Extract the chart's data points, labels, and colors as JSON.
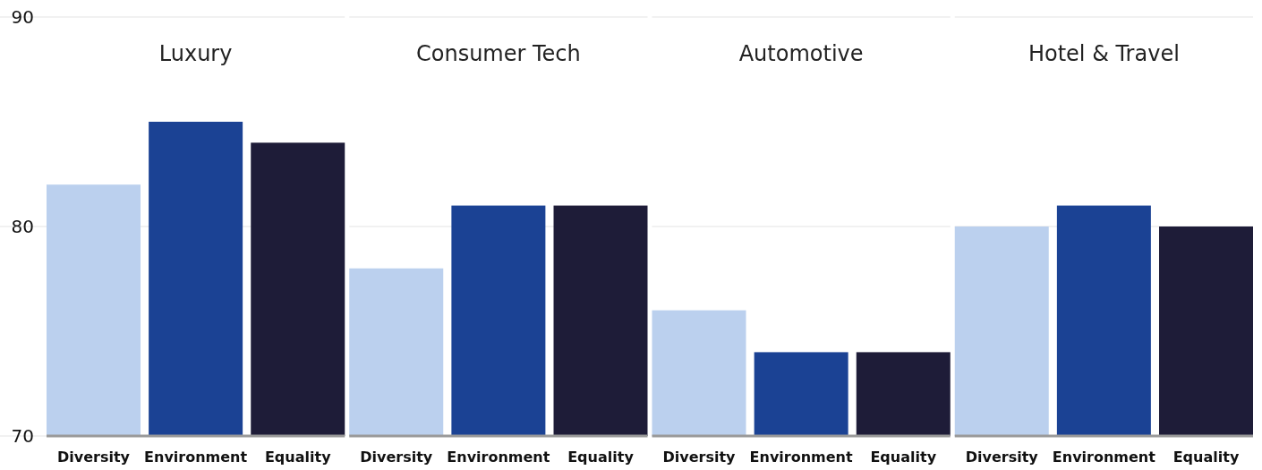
{
  "chart_data": [
    {
      "type": "bar",
      "title": "Luxury",
      "categories": [
        "Diversity",
        "Environment",
        "Equality"
      ],
      "values": [
        82,
        85,
        84
      ],
      "colors": [
        "#bbd0ee",
        "#1b4294",
        "#1e1c38"
      ],
      "ylim": [
        70,
        90
      ],
      "yticks": [
        70,
        80,
        90
      ],
      "grid": "y"
    },
    {
      "type": "bar",
      "title": "Consumer Tech",
      "categories": [
        "Diversity",
        "Environment",
        "Equality"
      ],
      "values": [
        78,
        81,
        81
      ],
      "colors": [
        "#bbd0ee",
        "#1b4294",
        "#1e1c38"
      ],
      "ylim": [
        70,
        90
      ],
      "yticks": [
        70,
        80,
        90
      ],
      "grid": "y",
      "tick_labels": "x"
    },
    {
      "type": "bar",
      "title": "Automotive",
      "categories": [
        "Diversity",
        "Environment",
        "Equality"
      ],
      "values": [
        76,
        74,
        74
      ],
      "colors": [
        "#bbd0ee",
        "#1b4294",
        "#1e1c38"
      ],
      "ylim": [
        70,
        90
      ],
      "yticks": [
        70,
        80,
        90
      ],
      "grid": "y",
      "tick_labels": "x"
    },
    {
      "type": "bar",
      "title": "Hotel & Travel",
      "categories": [
        "Diversity",
        "Environment",
        "Equality"
      ],
      "values": [
        80,
        81,
        80
      ],
      "colors": [
        "#bbd0ee",
        "#1b4294",
        "#1e1c38"
      ],
      "ylim": [
        70,
        90
      ],
      "yticks": [
        70,
        80,
        90
      ],
      "grid": "y",
      "tick_labels": "x"
    }
  ]
}
